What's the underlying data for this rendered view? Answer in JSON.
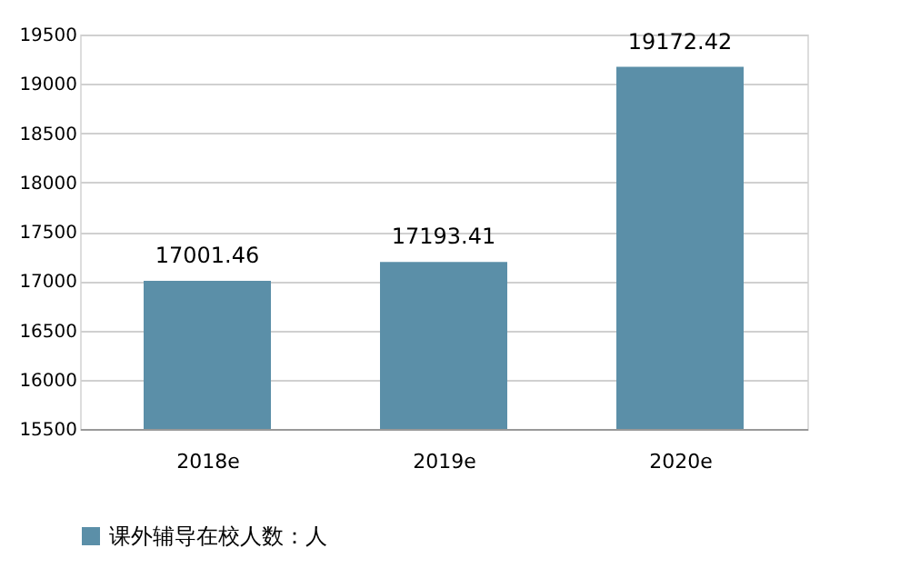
{
  "chart_data": {
    "type": "bar",
    "categories": [
      "2018e",
      "2019e",
      "2020e"
    ],
    "series": [
      {
        "name": "课外辅导在校人数：人",
        "color": "#5b8fa8",
        "values": [
          17001.46,
          17193.41,
          19172.42
        ]
      }
    ],
    "ylim": [
      15500,
      19500
    ],
    "yticks": [
      15500,
      16000,
      16500,
      17000,
      17500,
      18000,
      18500,
      19000,
      19500
    ],
    "grid": "y",
    "legend": "bottom",
    "data_labels": true
  }
}
